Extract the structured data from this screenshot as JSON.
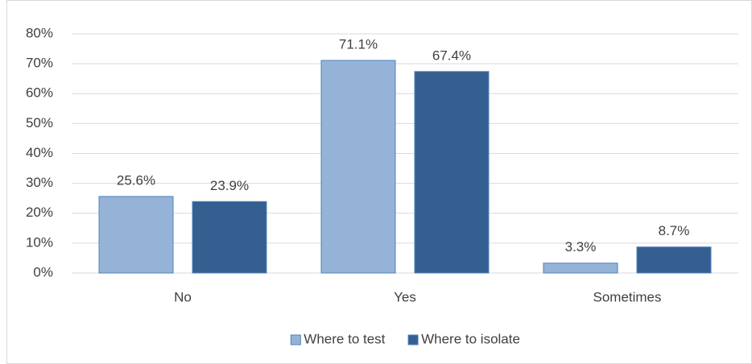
{
  "chart_data": {
    "type": "bar",
    "categories": [
      "No",
      "Yes",
      "Sometimes"
    ],
    "series": [
      {
        "name": "Where to test",
        "color": "#95b3d7",
        "values": [
          25.6,
          71.1,
          3.3
        ],
        "value_labels": [
          "25.6%",
          "71.1%",
          "3.3%"
        ]
      },
      {
        "name": "Where to isolate",
        "color": "#355f91",
        "values": [
          23.9,
          67.4,
          8.7
        ],
        "value_labels": [
          "23.9%",
          "67.4%",
          "8.7%"
        ]
      }
    ],
    "ylim": [
      0,
      80
    ],
    "yticks": [
      {
        "value": 0,
        "label": "0%"
      },
      {
        "value": 10,
        "label": "10%"
      },
      {
        "value": 20,
        "label": "20%"
      },
      {
        "value": 30,
        "label": "30%"
      },
      {
        "value": 40,
        "label": "40%"
      },
      {
        "value": 50,
        "label": "50%"
      },
      {
        "value": 60,
        "label": "60%"
      },
      {
        "value": 70,
        "label": "70%"
      },
      {
        "value": 80,
        "label": "80%"
      }
    ],
    "grid": true,
    "legend": "bottom"
  }
}
